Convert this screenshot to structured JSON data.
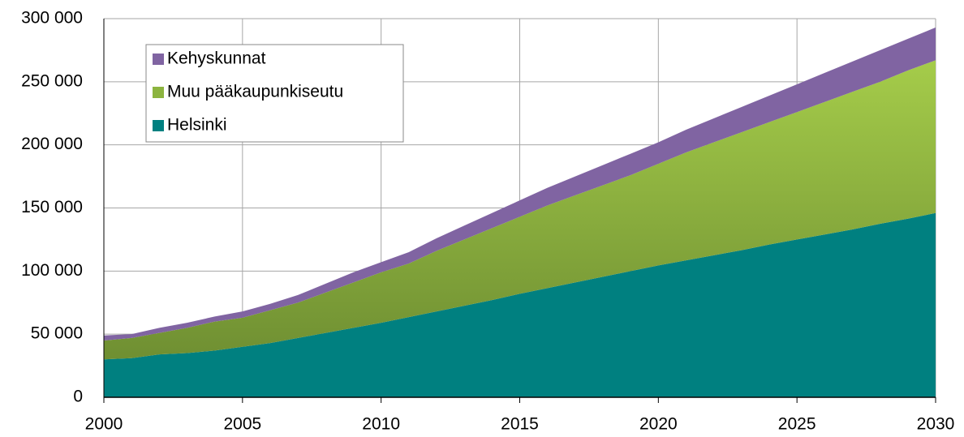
{
  "chart_data": {
    "type": "stacked_area",
    "x": [
      2000,
      2001,
      2002,
      2003,
      2004,
      2005,
      2006,
      2007,
      2008,
      2009,
      2010,
      2011,
      2012,
      2013,
      2014,
      2015,
      2016,
      2017,
      2018,
      2019,
      2020,
      2021,
      2022,
      2023,
      2024,
      2025,
      2026,
      2027,
      2028,
      2029,
      2030
    ],
    "series": [
      {
        "name": "Helsinki",
        "color": "#008080",
        "values": [
          30000,
          31000,
          34000,
          35000,
          37000,
          40000,
          43000,
          47000,
          51000,
          55000,
          59000,
          63500,
          68000,
          72500,
          77000,
          82000,
          86500,
          91000,
          95500,
          100000,
          104500,
          108500,
          112500,
          116500,
          121000,
          125000,
          129000,
          133000,
          137500,
          141500,
          146000
        ]
      },
      {
        "name": "Muu pääkaupunkiseutu",
        "color": "#8cb43f",
        "values": [
          15000,
          16000,
          17000,
          20000,
          23000,
          23000,
          26000,
          28000,
          32000,
          36000,
          40000,
          42500,
          48000,
          52500,
          57000,
          61000,
          65500,
          69000,
          72500,
          76000,
          80500,
          85500,
          89500,
          93500,
          97000,
          101000,
          105000,
          109000,
          112500,
          117500,
          121000
        ]
      },
      {
        "name": "Kehyskunnat",
        "color": "#8064a2",
        "values": [
          4000,
          3000,
          4000,
          4000,
          4000,
          5000,
          5000,
          6000,
          7000,
          8000,
          8000,
          9000,
          10000,
          11000,
          12000,
          13000,
          14000,
          15000,
          16000,
          17000,
          17000,
          18000,
          19000,
          20000,
          21000,
          22000,
          23000,
          24000,
          25000,
          25000,
          26000
        ]
      }
    ],
    "xlim": [
      2000,
      2030
    ],
    "xticks": [
      2000,
      2005,
      2010,
      2015,
      2020,
      2025,
      2030
    ],
    "ylim": [
      0,
      300000
    ],
    "yticks": [
      0,
      {
        "value": 50000,
        "label": "50 000"
      },
      {
        "value": 100000,
        "label": "100 000"
      },
      {
        "value": 150000,
        "label": "150 000"
      },
      {
        "value": 200000,
        "label": "200 000"
      },
      {
        "value": 250000,
        "label": "250 000"
      },
      {
        "value": 300000,
        "label": "300 000"
      }
    ],
    "grid": true,
    "legend": "upper left"
  }
}
